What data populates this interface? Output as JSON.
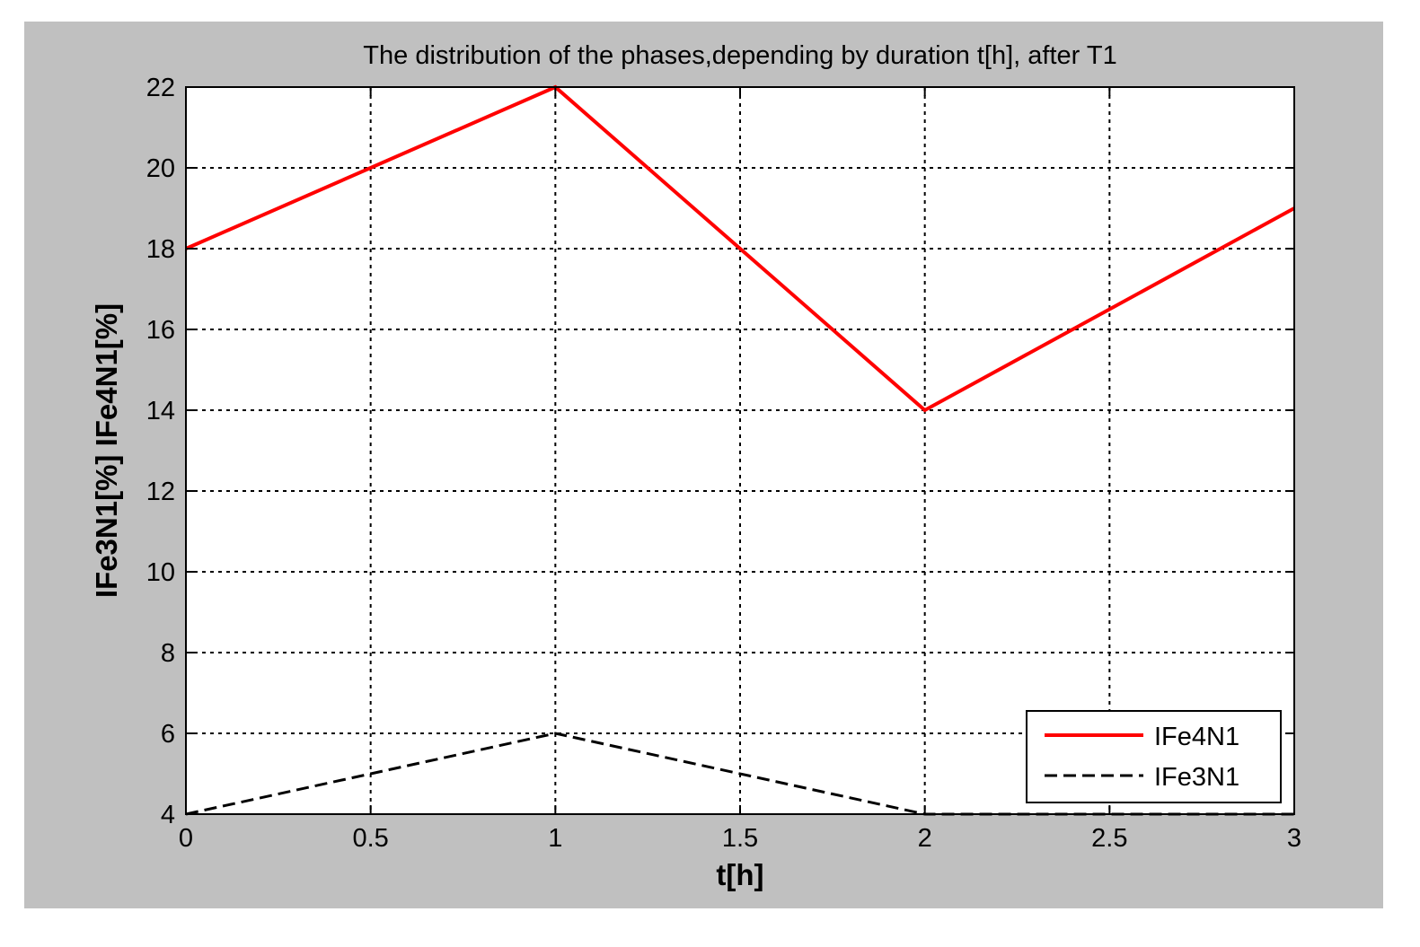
{
  "chart_data": {
    "type": "line",
    "title": "The distribution of the phases,depending by duration t[h], after T1",
    "xlabel": "t[h]",
    "ylabel": "IFe3N1[%] IFe4N1[%]",
    "xlim": [
      0,
      3
    ],
    "ylim": [
      4,
      22
    ],
    "xticks": [
      "0",
      "0.5",
      "1",
      "1.5",
      "2",
      "2.5",
      "3"
    ],
    "yticks": [
      "4",
      "6",
      "8",
      "10",
      "12",
      "14",
      "16",
      "18",
      "20",
      "22"
    ],
    "grid": true,
    "legend_position": "bottom-right",
    "x": [
      0,
      1,
      2,
      3
    ],
    "series": [
      {
        "name": "IFe4N1",
        "values": [
          18,
          22,
          14,
          19
        ],
        "color": "#ff0000",
        "style": "solid"
      },
      {
        "name": "IFe3N1",
        "values": [
          4,
          6,
          4,
          4
        ],
        "color": "#000000",
        "style": "dashed"
      }
    ]
  }
}
